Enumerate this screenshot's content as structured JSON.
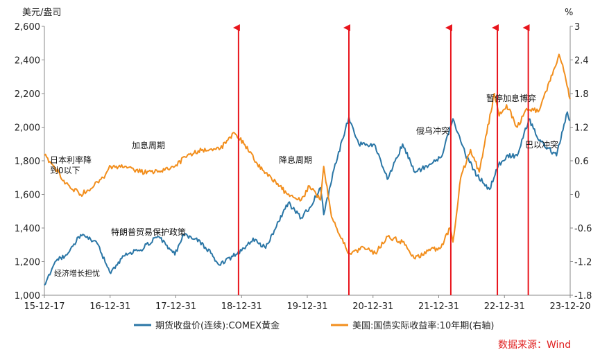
{
  "chart_data": {
    "type": "line",
    "left_unit": "美元/盎司",
    "right_unit": "%",
    "x_ticks": [
      "15-12-17",
      "16-12-31",
      "17-12-31",
      "18-12-31",
      "19-12-31",
      "20-12-31",
      "21-12-31",
      "22-12-31",
      "23-12-20"
    ],
    "left_axis": {
      "ylim": [
        1000,
        2600
      ],
      "ticks": [
        "1,000",
        "1,200",
        "1,400",
        "1,600",
        "1,800",
        "2,000",
        "2,200",
        "2,400",
        "2,600"
      ]
    },
    "right_axis": {
      "ylim": [
        -1.8,
        3
      ],
      "ticks": [
        "-1.8",
        "-1.2",
        "-0.6",
        "0",
        "0.6",
        "1.2",
        "1.8",
        "2.4",
        "3"
      ]
    },
    "series": [
      {
        "name": "期货收盘价(连续):COMEX黄金",
        "axis": "left",
        "color": "#2a76a6",
        "x": [
          "2015-12-17",
          "2016-02-15",
          "2016-04-15",
          "2016-07-06",
          "2016-09-30",
          "2016-12-20",
          "2017-03-15",
          "2017-06-05",
          "2017-09-08",
          "2017-12-12",
          "2018-01-25",
          "2018-04-12",
          "2018-06-30",
          "2018-08-16",
          "2018-10-30",
          "2018-12-31",
          "2019-02-20",
          "2019-05-01",
          "2019-06-30",
          "2019-09-04",
          "2019-11-15",
          "2019-12-31",
          "2020-03-01",
          "2020-03-19",
          "2020-05-15",
          "2020-08-06",
          "2020-09-30",
          "2020-12-31",
          "2021-03-08",
          "2021-06-01",
          "2021-08-09",
          "2021-10-30",
          "2021-12-31",
          "2022-03-08",
          "2022-05-15",
          "2022-07-20",
          "2022-09-28",
          "2022-11-15",
          "2022-12-31",
          "2023-03-01",
          "2023-05-04",
          "2023-06-30",
          "2023-10-05",
          "2023-12-04",
          "2023-12-20"
        ],
        "values": [
          1060,
          1200,
          1240,
          1360,
          1320,
          1130,
          1250,
          1270,
          1350,
          1240,
          1360,
          1340,
          1250,
          1180,
          1230,
          1280,
          1340,
          1280,
          1410,
          1550,
          1460,
          1520,
          1640,
          1480,
          1750,
          2060,
          1900,
          1890,
          1690,
          1900,
          1730,
          1780,
          1820,
          2050,
          1840,
          1710,
          1630,
          1770,
          1830,
          1830,
          2050,
          1920,
          1830,
          2090,
          2040
        ]
      },
      {
        "name": "美国:国债实际收益率:10年期(右轴)",
        "axis": "right",
        "color": "#f28e1c",
        "x": [
          "2015-12-17",
          "2016-02-10",
          "2016-04-15",
          "2016-07-06",
          "2016-08-31",
          "2016-11-08",
          "2016-12-20",
          "2017-03-15",
          "2017-06-05",
          "2017-09-08",
          "2017-12-12",
          "2018-02-20",
          "2018-05-15",
          "2018-08-16",
          "2018-11-08",
          "2018-12-31",
          "2019-03-15",
          "2019-06-01",
          "2019-08-30",
          "2019-11-15",
          "2019-12-31",
          "2020-03-01",
          "2020-03-19",
          "2020-05-01",
          "2020-08-06",
          "2020-10-30",
          "2020-12-31",
          "2021-03-10",
          "2021-06-01",
          "2021-08-09",
          "2021-11-01",
          "2021-12-31",
          "2022-02-20",
          "2022-03-08",
          "2022-04-20",
          "2022-06-14",
          "2022-08-01",
          "2022-10-24",
          "2022-11-20",
          "2022-12-31",
          "2023-03-01",
          "2023-04-15",
          "2023-07-01",
          "2023-10-19",
          "2023-11-15",
          "2023-12-20"
        ],
        "values": [
          0.7,
          0.5,
          0.2,
          0,
          0.1,
          0.3,
          0.5,
          0.5,
          0.4,
          0.4,
          0.5,
          0.7,
          0.8,
          0.8,
          1.1,
          0.9,
          0.55,
          0.3,
          0,
          -0.1,
          0.15,
          -0.1,
          0.5,
          -0.4,
          -1.05,
          -0.95,
          -1.05,
          -0.75,
          -0.85,
          -1.15,
          -1.0,
          -0.95,
          -0.6,
          -0.85,
          0.3,
          0.8,
          0.4,
          1.8,
          1.4,
          1.6,
          1.2,
          1.5,
          1.5,
          2.5,
          2.2,
          1.7
        ]
      }
    ],
    "events": [
      {
        "x": "2018-12-01"
      },
      {
        "x": "2020-08-06"
      },
      {
        "x": "2022-02-24"
      },
      {
        "x": "2022-11-10"
      },
      {
        "x": "2023-05-01"
      }
    ],
    "annotations": [
      {
        "text": "日本利率降"
      },
      {
        "text": "到0以下"
      },
      {
        "text": "加息周期"
      },
      {
        "text": "降息周期"
      },
      {
        "text": "俄乌冲突"
      },
      {
        "text": "暂停加息博弈"
      },
      {
        "text": "巴以冲突"
      },
      {
        "text": "特朗普贸易保护政策"
      },
      {
        "text": "经济增长担忧"
      }
    ],
    "legend_placement": "bottom",
    "grid": false,
    "source": "数据来源：Wind"
  }
}
